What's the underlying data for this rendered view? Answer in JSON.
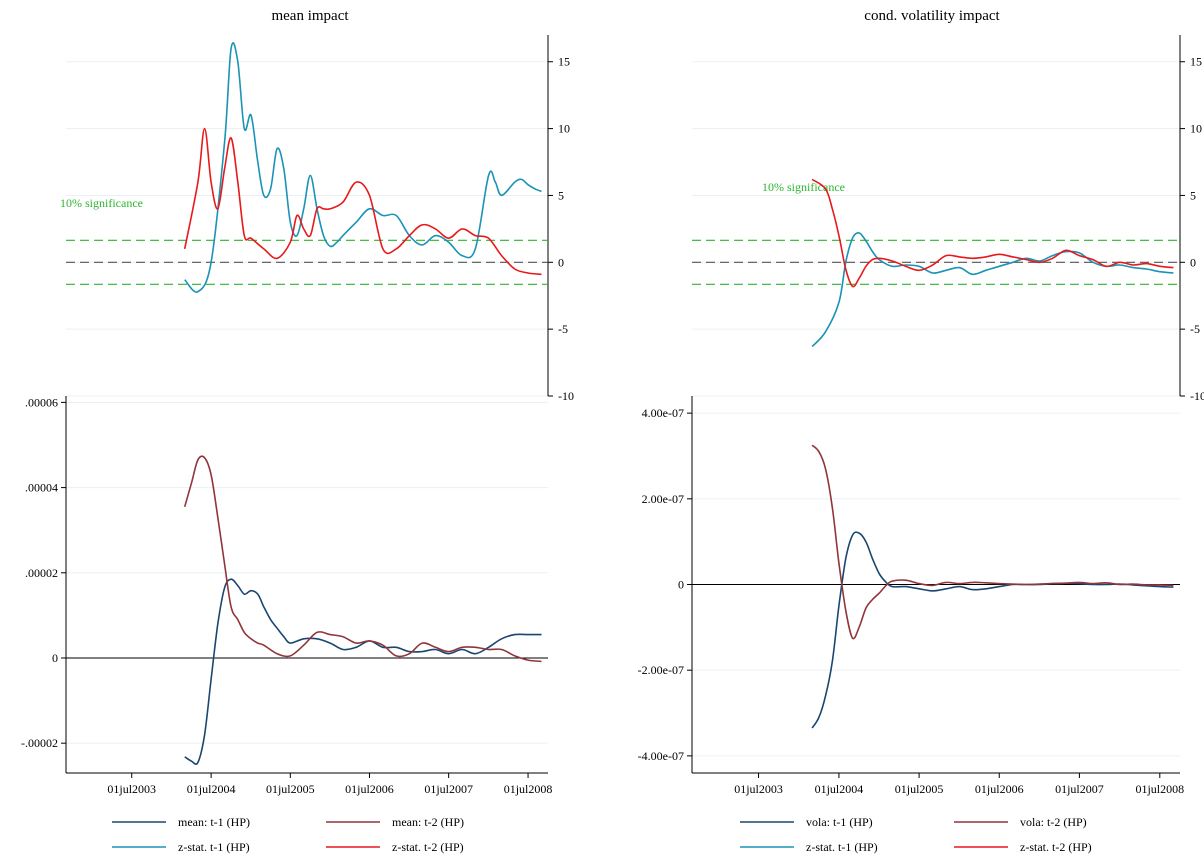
{
  "colors": {
    "mean_t1": "#1a476f",
    "mean_t2": "#90353b",
    "z_t1": "#1a93b5",
    "z_t2": "#e8191b",
    "significance": "#2db52d",
    "zero_dashed": "#555555",
    "grid": "#eaf0f2",
    "axis": "#000000"
  },
  "chart_data": [
    {
      "id": "mean-top",
      "type": "line",
      "title": "mean impact",
      "annotation": "10% significance",
      "x_ticks": [
        "01jul2003",
        "01jul2004",
        "01jul2005",
        "01jul2006",
        "01jul2007",
        "01jul2008"
      ],
      "xlim": [
        "2002-09-01",
        "2008-10-01"
      ],
      "ylim": [
        -10,
        17
      ],
      "y_ticks": [
        -10,
        -5,
        0,
        5,
        10,
        15
      ],
      "y_tick_labels": [
        "-10",
        "-5",
        "0",
        "5",
        "10",
        "15"
      ],
      "y_axis_side": "right",
      "reference_lines": [
        1.645,
        0,
        -1.645
      ],
      "series": [
        {
          "name": "z-stat. t-1 (HP)",
          "x": [
            "2004-03-01",
            "2004-05-01",
            "2004-07-01",
            "2004-09-01",
            "2004-10-01",
            "2004-11-01",
            "2004-12-01",
            "2005-01-01",
            "2005-02-01",
            "2005-03-01",
            "2005-04-01",
            "2005-05-01",
            "2005-06-01",
            "2005-07-01",
            "2005-08-01",
            "2005-09-01",
            "2005-10-01",
            "2005-11-01",
            "2005-12-01",
            "2006-01-01",
            "2006-02-01",
            "2006-03-01",
            "2006-05-01",
            "2006-07-01",
            "2006-09-01",
            "2006-11-01",
            "2007-01-01",
            "2007-03-01",
            "2007-05-01",
            "2007-07-01",
            "2007-09-01",
            "2007-11-01",
            "2008-01-01",
            "2008-02-01",
            "2008-03-01",
            "2008-05-01",
            "2008-06-01",
            "2008-07-01",
            "2008-08-01",
            "2008-09-01"
          ],
          "values": [
            -1.3,
            -2.2,
            0,
            9,
            16,
            15,
            10,
            11,
            7.5,
            5,
            5.5,
            8.5,
            7,
            3,
            2,
            4,
            6.5,
            4,
            2,
            1.2,
            1.5,
            2,
            3,
            4,
            3.5,
            3.5,
            2,
            1.3,
            2,
            1.5,
            0.5,
            1,
            6.5,
            6,
            5,
            6,
            6.2,
            5.8,
            5.5,
            5.3
          ]
        },
        {
          "name": "z-stat. t-2 (HP)",
          "x": [
            "2004-03-01",
            "2004-05-01",
            "2004-06-01",
            "2004-07-01",
            "2004-08-01",
            "2004-09-01",
            "2004-10-01",
            "2004-11-01",
            "2004-12-01",
            "2005-01-01",
            "2005-03-01",
            "2005-05-01",
            "2005-07-01",
            "2005-08-01",
            "2005-09-01",
            "2005-10-01",
            "2005-11-01",
            "2005-12-01",
            "2006-01-01",
            "2006-03-01",
            "2006-05-01",
            "2006-07-01",
            "2006-09-01",
            "2006-11-01",
            "2007-01-01",
            "2007-03-01",
            "2007-05-01",
            "2007-07-01",
            "2007-09-01",
            "2007-11-01",
            "2008-01-01",
            "2008-03-01",
            "2008-05-01",
            "2008-07-01",
            "2008-09-01"
          ],
          "values": [
            1,
            6,
            10,
            6,
            4,
            7,
            9.3,
            6,
            2,
            1.8,
            1,
            0.3,
            1.5,
            3.5,
            2.5,
            2,
            4,
            4,
            4,
            4.5,
            6,
            5,
            1,
            1,
            2,
            2.8,
            2.5,
            1.8,
            2.5,
            2,
            1.8,
            0.5,
            -0.5,
            -0.8,
            -0.9
          ]
        }
      ]
    },
    {
      "id": "mean-bottom",
      "type": "line",
      "title": "",
      "x_ticks": [
        "01jul2003",
        "01jul2004",
        "01jul2005",
        "01jul2006",
        "01jul2007",
        "01jul2008"
      ],
      "xlim": [
        "2002-09-01",
        "2008-10-01"
      ],
      "ylim": [
        -2.7e-05,
        6.15e-05
      ],
      "y_ticks": [
        -2e-05,
        0,
        2e-05,
        4e-05,
        6e-05
      ],
      "y_tick_labels": [
        "-.00002",
        "0",
        ".00002",
        ".00004",
        ".00006"
      ],
      "y_axis_side": "left",
      "series": [
        {
          "name": "mean: t-1 (HP)",
          "x": [
            "2004-03-01",
            "2004-04-01",
            "2004-05-01",
            "2004-06-01",
            "2004-07-01",
            "2004-08-01",
            "2004-09-01",
            "2004-10-01",
            "2004-11-01",
            "2004-12-01",
            "2005-01-01",
            "2005-02-01",
            "2005-03-01",
            "2005-04-01",
            "2005-05-01",
            "2005-06-01",
            "2005-07-01",
            "2005-09-01",
            "2005-11-01",
            "2006-01-01",
            "2006-03-01",
            "2006-05-01",
            "2006-07-01",
            "2006-09-01",
            "2006-11-01",
            "2007-01-01",
            "2007-03-01",
            "2007-05-01",
            "2007-07-01",
            "2007-09-01",
            "2007-11-01",
            "2008-01-01",
            "2008-03-01",
            "2008-05-01",
            "2008-07-01",
            "2008-09-01"
          ],
          "values": [
            -2.32e-05,
            -2.42e-05,
            -2.45e-05,
            -1.8e-05,
            -5e-06,
            8e-06,
            1.65e-05,
            1.85e-05,
            1.7e-05,
            1.5e-05,
            1.58e-05,
            1.5e-05,
            1.2e-05,
            9e-06,
            7e-06,
            5e-06,
            3.5e-06,
            4.5e-06,
            4.5e-06,
            3.5e-06,
            2e-06,
            2.5e-06,
            4e-06,
            2.5e-06,
            2.5e-06,
            1.5e-06,
            1.5e-06,
            2e-06,
            1e-06,
            2e-06,
            1e-06,
            2.5e-06,
            4.5e-06,
            5.5e-06,
            5.5e-06,
            5.5e-06
          ]
        },
        {
          "name": "mean: t-2 (HP)",
          "x": [
            "2004-03-01",
            "2004-04-01",
            "2004-05-01",
            "2004-06-01",
            "2004-07-01",
            "2004-08-01",
            "2004-09-01",
            "2004-10-01",
            "2004-11-01",
            "2004-12-01",
            "2005-01-01",
            "2005-02-01",
            "2005-03-01",
            "2005-05-01",
            "2005-07-01",
            "2005-09-01",
            "2005-11-01",
            "2006-01-01",
            "2006-03-01",
            "2006-05-01",
            "2006-07-01",
            "2006-09-01",
            "2006-11-01",
            "2007-01-01",
            "2007-03-01",
            "2007-05-01",
            "2007-07-01",
            "2007-09-01",
            "2007-11-01",
            "2008-01-01",
            "2008-03-01",
            "2008-05-01",
            "2008-07-01",
            "2008-09-01"
          ],
          "values": [
            3.55e-05,
            4.1e-05,
            4.65e-05,
            4.7e-05,
            4.3e-05,
            3.3e-05,
            2.2e-05,
            1.2e-05,
            9e-06,
            6e-06,
            4.5e-06,
            3.5e-06,
            3e-06,
            1e-06,
            5e-07,
            3e-06,
            6e-06,
            5.5e-06,
            5e-06,
            3.5e-06,
            4e-06,
            3e-06,
            5e-07,
            1e-06,
            3.5e-06,
            2.5e-06,
            1.5e-06,
            2.5e-06,
            2.5e-06,
            2e-06,
            2e-06,
            5e-07,
            -5e-07,
            -8e-07
          ]
        }
      ]
    },
    {
      "id": "vola-top",
      "type": "line",
      "title": "cond. volatility impact",
      "annotation": "10% significance",
      "x_ticks": [
        "01jul2003",
        "01jul2004",
        "01jul2005",
        "01jul2006",
        "01jul2007",
        "01jul2008"
      ],
      "xlim": [
        "2002-09-01",
        "2008-10-01"
      ],
      "ylim": [
        -10,
        17
      ],
      "y_ticks": [
        -10,
        -5,
        0,
        5,
        10,
        15
      ],
      "y_tick_labels": [
        "-10",
        "-5",
        "0",
        "5",
        "10",
        "15"
      ],
      "y_axis_side": "right",
      "reference_lines": [
        1.645,
        0,
        -1.645
      ],
      "series": [
        {
          "name": "z-stat. t-1 (HP)",
          "x": [
            "2004-03-01",
            "2004-05-01",
            "2004-07-01",
            "2004-08-01",
            "2004-09-01",
            "2004-10-01",
            "2004-11-01",
            "2004-12-01",
            "2005-01-01",
            "2005-03-01",
            "2005-05-01",
            "2005-07-01",
            "2005-09-01",
            "2005-11-01",
            "2006-01-01",
            "2006-03-01",
            "2006-05-01",
            "2006-07-01",
            "2006-09-01",
            "2006-11-01",
            "2007-01-01",
            "2007-03-01",
            "2007-05-01",
            "2007-07-01",
            "2007-09-01",
            "2007-11-01",
            "2008-01-01",
            "2008-03-01",
            "2008-05-01",
            "2008-07-01",
            "2008-09-01"
          ],
          "values": [
            -6.3,
            -5.2,
            -3,
            0,
            1.8,
            2.2,
            1.6,
            0.8,
            0.2,
            -0.3,
            -0.2,
            -0.3,
            -0.8,
            -0.6,
            -0.4,
            -0.9,
            -0.6,
            -0.3,
            0,
            0.3,
            0.1,
            0.5,
            0.8,
            0.7,
            0,
            -0.3,
            -0.2,
            -0.4,
            -0.5,
            -0.7,
            -0.8
          ]
        },
        {
          "name": "z-stat. t-2 (HP)",
          "x": [
            "2004-03-01",
            "2004-05-01",
            "2004-06-01",
            "2004-07-01",
            "2004-08-01",
            "2004-09-01",
            "2004-10-01",
            "2004-11-01",
            "2004-12-01",
            "2005-01-01",
            "2005-03-01",
            "2005-05-01",
            "2005-07-01",
            "2005-09-01",
            "2005-11-01",
            "2006-01-01",
            "2006-03-01",
            "2006-05-01",
            "2006-07-01",
            "2006-09-01",
            "2006-11-01",
            "2007-01-01",
            "2007-03-01",
            "2007-05-01",
            "2007-07-01",
            "2007-09-01",
            "2007-11-01",
            "2008-01-01",
            "2008-03-01",
            "2008-05-01",
            "2008-07-01",
            "2008-09-01"
          ],
          "values": [
            6.2,
            5.5,
            4,
            2,
            -0.5,
            -1.8,
            -1.2,
            -0.3,
            0.2,
            0.3,
            0.1,
            -0.3,
            -0.6,
            -0.2,
            0.5,
            0.4,
            0.3,
            0.4,
            0.6,
            0.4,
            0.2,
            0,
            0.3,
            0.9,
            0.5,
            0.2,
            -0.3,
            0,
            -0.2,
            -0.1,
            -0.3,
            -0.4
          ]
        }
      ]
    },
    {
      "id": "vola-bottom",
      "type": "line",
      "title": "",
      "x_ticks": [
        "01jul2003",
        "01jul2004",
        "01jul2005",
        "01jul2006",
        "01jul2007",
        "01jul2008"
      ],
      "xlim": [
        "2002-09-01",
        "2008-10-01"
      ],
      "ylim": [
        -4.4e-07,
        4.4e-07
      ],
      "y_ticks": [
        -4e-07,
        -2e-07,
        0,
        2e-07,
        4e-07
      ],
      "y_tick_labels": [
        "-4.00e-07",
        "-2.00e-07",
        "0",
        "2.00e-07",
        "4.00e-07"
      ],
      "y_axis_side": "left",
      "series": [
        {
          "name": "vola: t-1 (HP)",
          "x": [
            "2004-03-01",
            "2004-04-01",
            "2004-05-01",
            "2004-06-01",
            "2004-07-01",
            "2004-08-01",
            "2004-09-01",
            "2004-10-01",
            "2004-11-01",
            "2004-12-01",
            "2005-01-01",
            "2005-02-01",
            "2005-03-01",
            "2005-05-01",
            "2005-07-01",
            "2005-09-01",
            "2005-11-01",
            "2006-01-01",
            "2006-03-01",
            "2006-05-01",
            "2006-07-01",
            "2006-09-01",
            "2006-11-01",
            "2007-01-01",
            "2007-03-01",
            "2007-05-01",
            "2007-07-01",
            "2007-09-01",
            "2007-11-01",
            "2008-01-01",
            "2008-03-01",
            "2008-05-01",
            "2008-07-01",
            "2008-09-01"
          ],
          "values": [
            -3.35e-07,
            -3.1e-07,
            -2.6e-07,
            -1.8e-07,
            -5e-08,
            6e-08,
            1.15e-07,
            1.2e-07,
            1e-07,
            6e-08,
            2.5e-08,
            5e-09,
            -5e-09,
            -5e-09,
            -1e-08,
            -1.5e-08,
            -1e-08,
            -5e-09,
            -1.2e-08,
            -1e-08,
            -5e-09,
            0,
            0,
            0,
            2e-09,
            3e-09,
            2e-09,
            0,
            0,
            1e-09,
            -1e-09,
            -3e-09,
            -5e-09,
            -6e-09
          ]
        },
        {
          "name": "vola: t-2 (HP)",
          "x": [
            "2004-03-01",
            "2004-04-01",
            "2004-05-01",
            "2004-06-01",
            "2004-07-01",
            "2004-08-01",
            "2004-09-01",
            "2004-10-01",
            "2004-11-01",
            "2004-12-01",
            "2005-01-01",
            "2005-02-01",
            "2005-03-01",
            "2005-05-01",
            "2005-07-01",
            "2005-09-01",
            "2005-11-01",
            "2006-01-01",
            "2006-03-01",
            "2006-05-01",
            "2006-07-01",
            "2006-09-01",
            "2006-11-01",
            "2007-01-01",
            "2007-03-01",
            "2007-05-01",
            "2007-07-01",
            "2007-09-01",
            "2007-11-01",
            "2008-01-01",
            "2008-03-01",
            "2008-05-01",
            "2008-07-01",
            "2008-09-01"
          ],
          "values": [
            3.25e-07,
            3.1e-07,
            2.7e-07,
            1.8e-07,
            5e-08,
            -6e-08,
            -1.25e-07,
            -1e-07,
            -5.5e-08,
            -3.5e-08,
            -2e-08,
            -2e-09,
            8e-09,
            1e-08,
            2e-09,
            -2e-09,
            5e-09,
            2e-09,
            5e-09,
            4e-09,
            2e-09,
            1e-09,
            0,
            1e-09,
            2e-09,
            3e-09,
            5e-09,
            2e-09,
            4e-09,
            0,
            1e-09,
            -1e-09,
            -1e-09,
            -2e-09
          ]
        }
      ]
    }
  ],
  "legends": [
    {
      "id": "left",
      "entries": [
        {
          "label": "mean: t-1 (HP)",
          "color_key": "mean_t1"
        },
        {
          "label": "mean: t-2 (HP)",
          "color_key": "mean_t2"
        },
        {
          "label": "z-stat. t-1 (HP)",
          "color_key": "z_t1"
        },
        {
          "label": "z-stat. t-2 (HP)",
          "color_key": "z_t2"
        }
      ]
    },
    {
      "id": "right",
      "entries": [
        {
          "label": "vola: t-1 (HP)",
          "color_key": "mean_t1"
        },
        {
          "label": "vola: t-2 (HP)",
          "color_key": "mean_t2"
        },
        {
          "label": "z-stat. t-1 (HP)",
          "color_key": "z_t1"
        },
        {
          "label": "z-stat. t-2 (HP)",
          "color_key": "z_t2"
        }
      ]
    }
  ]
}
